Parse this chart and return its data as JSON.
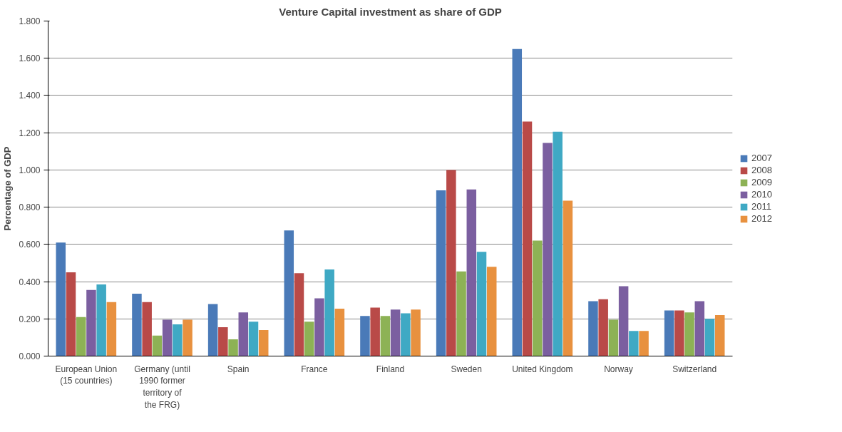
{
  "chart_data": {
    "type": "bar",
    "title": "Venture Capital investment as share of GDP",
    "ylabel": "Percentage of GDP",
    "categories": [
      "European Union (15 countries)",
      "Germany (until 1990 former territory of the FRG)",
      "Spain",
      "France",
      "Finland",
      "Sweden",
      "United Kingdom",
      "Norway",
      "Switzerland"
    ],
    "series": [
      {
        "name": "2007",
        "color": "#4a7ab8",
        "values": [
          0.61,
          0.335,
          0.28,
          0.675,
          0.215,
          0.89,
          1.65,
          0.295,
          0.245
        ]
      },
      {
        "name": "2008",
        "color": "#b94a48",
        "values": [
          0.45,
          0.29,
          0.155,
          0.445,
          0.26,
          1.0,
          1.26,
          0.305,
          0.245
        ]
      },
      {
        "name": "2009",
        "color": "#8db255",
        "values": [
          0.21,
          0.11,
          0.09,
          0.185,
          0.215,
          0.455,
          0.62,
          0.195,
          0.235
        ]
      },
      {
        "name": "2010",
        "color": "#7b5fa0",
        "values": [
          0.355,
          0.195,
          0.235,
          0.31,
          0.25,
          0.895,
          1.145,
          0.375,
          0.295
        ]
      },
      {
        "name": "2011",
        "color": "#3fa9c4",
        "values": [
          0.385,
          0.17,
          0.185,
          0.465,
          0.23,
          0.56,
          1.205,
          0.135,
          0.2
        ]
      },
      {
        "name": "2012",
        "color": "#e8913f",
        "values": [
          0.29,
          0.195,
          0.14,
          0.255,
          0.25,
          0.48,
          0.835,
          0.135,
          0.22
        ]
      }
    ],
    "ylim": [
      0,
      1.8
    ],
    "yticks": [
      {
        "value": 0,
        "label": "0.000"
      },
      {
        "value": 0.2,
        "label": "0.200"
      },
      {
        "value": 0.4,
        "label": "0.400"
      },
      {
        "value": 0.6,
        "label": "0.600"
      },
      {
        "value": 0.8,
        "label": "0.800"
      },
      {
        "value": 1.0,
        "label": "1.000"
      },
      {
        "value": 1.2,
        "label": "1.200"
      },
      {
        "value": 1.4,
        "label": "1.400"
      },
      {
        "value": 1.6,
        "label": "1.600"
      },
      {
        "value": 1.8,
        "label": "1.800"
      }
    ],
    "grid": "y",
    "legend": "right"
  }
}
